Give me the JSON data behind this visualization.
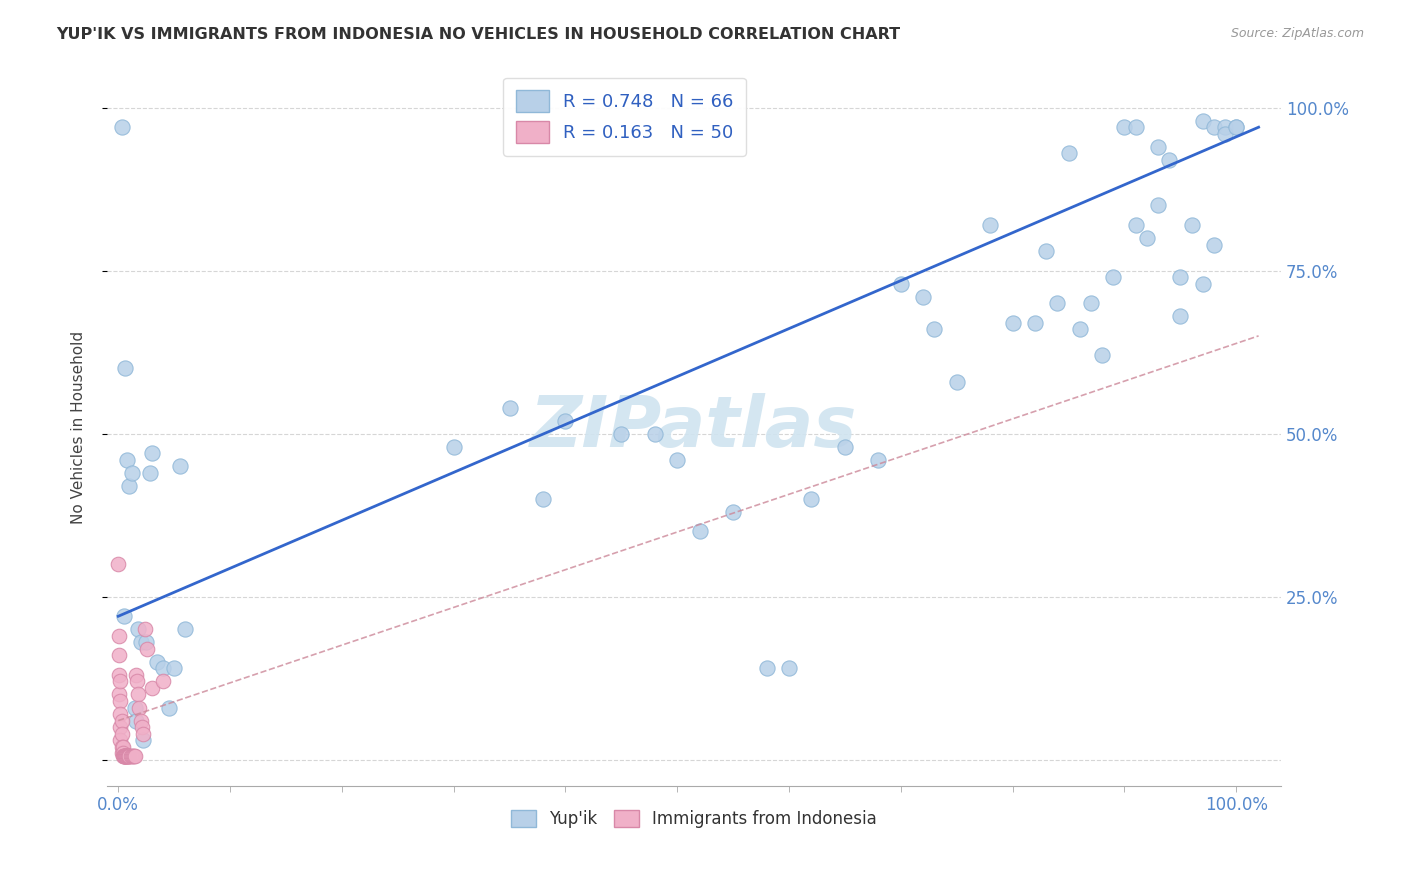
{
  "title": "YUP'IK VS IMMIGRANTS FROM INDONESIA NO VEHICLES IN HOUSEHOLD CORRELATION CHART",
  "source": "Source: ZipAtlas.com",
  "ylabel": "No Vehicles in Household",
  "legend_labels": [
    "Yup'ik",
    "Immigrants from Indonesia"
  ],
  "R_blue": 0.748,
  "N_blue": 66,
  "R_pink": 0.163,
  "N_pink": 50,
  "blue_color": "#b8d0e8",
  "pink_color": "#f0b0c8",
  "blue_line_color": "#3366cc",
  "pink_line_color": "#cc8899",
  "watermark_color": "#d0e4f0",
  "blue_scatter": [
    [
      0.003,
      0.97
    ],
    [
      0.005,
      0.22
    ],
    [
      0.006,
      0.6
    ],
    [
      0.008,
      0.46
    ],
    [
      0.01,
      0.42
    ],
    [
      0.012,
      0.44
    ],
    [
      0.015,
      0.08
    ],
    [
      0.016,
      0.06
    ],
    [
      0.018,
      0.2
    ],
    [
      0.02,
      0.18
    ],
    [
      0.022,
      0.03
    ],
    [
      0.025,
      0.18
    ],
    [
      0.028,
      0.44
    ],
    [
      0.03,
      0.47
    ],
    [
      0.035,
      0.15
    ],
    [
      0.04,
      0.14
    ],
    [
      0.045,
      0.08
    ],
    [
      0.05,
      0.14
    ],
    [
      0.055,
      0.45
    ],
    [
      0.06,
      0.2
    ],
    [
      0.3,
      0.48
    ],
    [
      0.35,
      0.54
    ],
    [
      0.38,
      0.4
    ],
    [
      0.4,
      0.52
    ],
    [
      0.45,
      0.5
    ],
    [
      0.48,
      0.5
    ],
    [
      0.5,
      0.46
    ],
    [
      0.52,
      0.35
    ],
    [
      0.55,
      0.38
    ],
    [
      0.58,
      0.14
    ],
    [
      0.6,
      0.14
    ],
    [
      0.62,
      0.4
    ],
    [
      0.65,
      0.48
    ],
    [
      0.68,
      0.46
    ],
    [
      0.7,
      0.73
    ],
    [
      0.72,
      0.71
    ],
    [
      0.73,
      0.66
    ],
    [
      0.75,
      0.58
    ],
    [
      0.78,
      0.82
    ],
    [
      0.8,
      0.67
    ],
    [
      0.82,
      0.67
    ],
    [
      0.83,
      0.78
    ],
    [
      0.84,
      0.7
    ],
    [
      0.85,
      0.93
    ],
    [
      0.86,
      0.66
    ],
    [
      0.87,
      0.7
    ],
    [
      0.88,
      0.62
    ],
    [
      0.89,
      0.74
    ],
    [
      0.9,
      0.97
    ],
    [
      0.91,
      0.97
    ],
    [
      0.91,
      0.82
    ],
    [
      0.92,
      0.8
    ],
    [
      0.93,
      0.94
    ],
    [
      0.94,
      0.92
    ],
    [
      0.95,
      0.74
    ],
    [
      0.96,
      0.82
    ],
    [
      0.97,
      0.98
    ],
    [
      0.98,
      0.97
    ],
    [
      0.99,
      0.97
    ],
    [
      1.0,
      0.97
    ],
    [
      0.93,
      0.85
    ],
    [
      0.95,
      0.68
    ],
    [
      0.97,
      0.73
    ],
    [
      0.98,
      0.79
    ],
    [
      0.99,
      0.96
    ],
    [
      1.0,
      0.97
    ]
  ],
  "pink_scatter": [
    [
      0.0,
      0.3
    ],
    [
      0.001,
      0.19
    ],
    [
      0.001,
      0.16
    ],
    [
      0.001,
      0.13
    ],
    [
      0.001,
      0.1
    ],
    [
      0.002,
      0.12
    ],
    [
      0.002,
      0.09
    ],
    [
      0.002,
      0.07
    ],
    [
      0.002,
      0.05
    ],
    [
      0.002,
      0.03
    ],
    [
      0.003,
      0.06
    ],
    [
      0.003,
      0.04
    ],
    [
      0.003,
      0.02
    ],
    [
      0.003,
      0.01
    ],
    [
      0.004,
      0.02
    ],
    [
      0.004,
      0.01
    ],
    [
      0.004,
      0.005
    ],
    [
      0.005,
      0.005
    ],
    [
      0.005,
      0.005
    ],
    [
      0.005,
      0.005
    ],
    [
      0.005,
      0.005
    ],
    [
      0.006,
      0.005
    ],
    [
      0.006,
      0.005
    ],
    [
      0.006,
      0.005
    ],
    [
      0.007,
      0.005
    ],
    [
      0.007,
      0.005
    ],
    [
      0.007,
      0.005
    ],
    [
      0.008,
      0.005
    ],
    [
      0.008,
      0.005
    ],
    [
      0.009,
      0.005
    ],
    [
      0.009,
      0.005
    ],
    [
      0.01,
      0.005
    ],
    [
      0.01,
      0.005
    ],
    [
      0.01,
      0.005
    ],
    [
      0.011,
      0.005
    ],
    [
      0.012,
      0.005
    ],
    [
      0.013,
      0.005
    ],
    [
      0.014,
      0.005
    ],
    [
      0.015,
      0.005
    ],
    [
      0.016,
      0.13
    ],
    [
      0.017,
      0.12
    ],
    [
      0.018,
      0.1
    ],
    [
      0.019,
      0.08
    ],
    [
      0.02,
      0.06
    ],
    [
      0.021,
      0.05
    ],
    [
      0.022,
      0.04
    ],
    [
      0.024,
      0.2
    ],
    [
      0.026,
      0.17
    ],
    [
      0.03,
      0.11
    ],
    [
      0.04,
      0.12
    ]
  ],
  "xlim": [
    -0.01,
    1.04
  ],
  "ylim": [
    -0.04,
    1.06
  ],
  "x_axis_left_label": "0.0%",
  "x_axis_right_label": "100.0%",
  "yticks": [
    0.0,
    0.25,
    0.5,
    0.75,
    1.0
  ],
  "yticklabels": [
    "",
    "25.0%",
    "50.0%",
    "75.0%",
    "100.0%"
  ],
  "figsize": [
    14.06,
    8.92
  ],
  "dpi": 100
}
